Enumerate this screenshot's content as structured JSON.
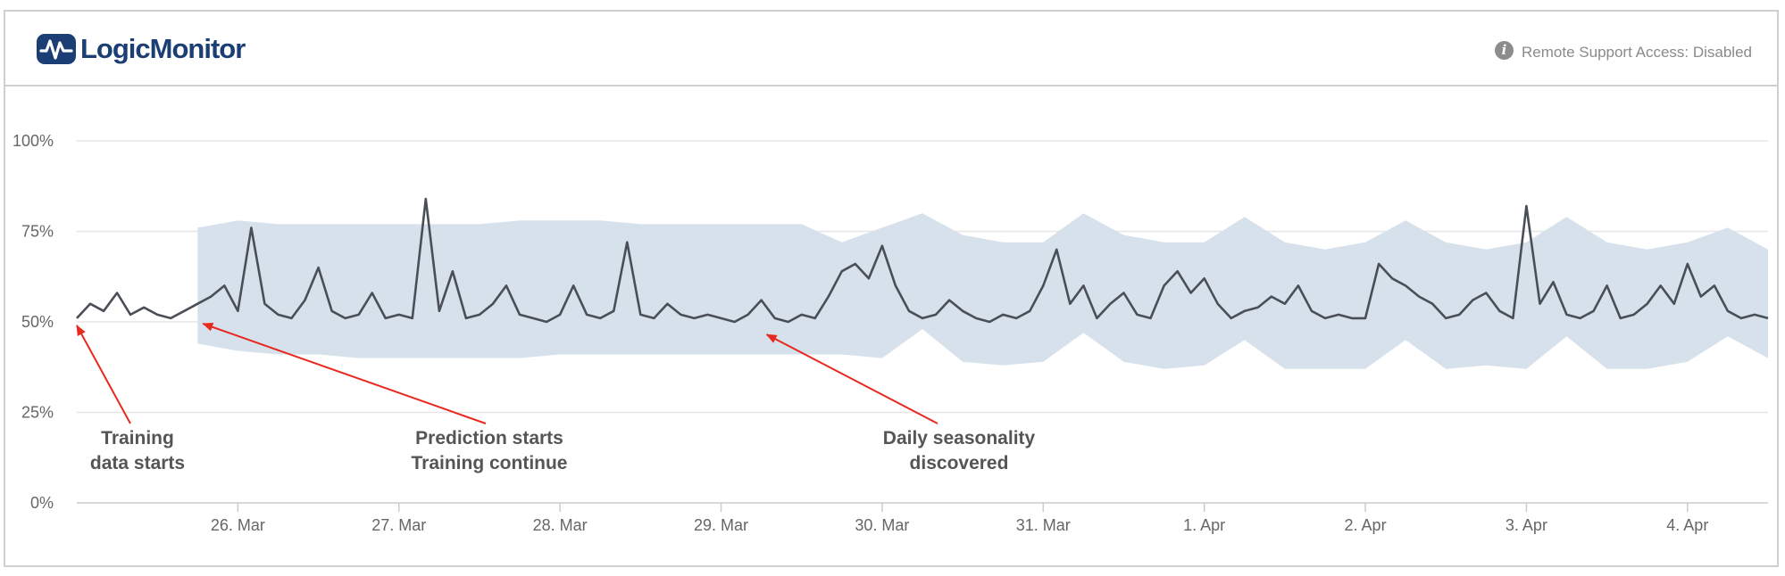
{
  "header": {
    "brand_logic": "Logic",
    "brand_monitor": "Monitor",
    "remote_support": "Remote Support Access: Disabled",
    "logo_icon": "pulse-logo-icon",
    "info_icon": "info-icon"
  },
  "colors": {
    "line": "#4a4f57",
    "band": "#d6e1ec",
    "grid": "#e6e6e6",
    "arrow": "#e8291f",
    "annotation_text": "#555555",
    "brand": "#1b3f74"
  },
  "chart_data": {
    "type": "line",
    "title": "",
    "xlabel": "",
    "ylabel": "",
    "ylim": [
      0,
      100
    ],
    "yticks": [
      0,
      25,
      50,
      75,
      100
    ],
    "ytick_labels": [
      "0%",
      "25%",
      "50%",
      "75%",
      "100%"
    ],
    "xlim": [
      "2024-03-25T00:00",
      "2024-04-04T12:00"
    ],
    "xticks": [
      "2024-03-26",
      "2024-03-27",
      "2024-03-28",
      "2024-03-29",
      "2024-03-30",
      "2024-03-31",
      "2024-04-01",
      "2024-04-02",
      "2024-04-03",
      "2024-04-04"
    ],
    "xtick_labels": [
      "26. Mar",
      "27. Mar",
      "28. Mar",
      "29. Mar",
      "30. Mar",
      "31. Mar",
      "1. Apr",
      "2. Apr",
      "3. Apr",
      "4. Apr"
    ],
    "grid": true,
    "legend": "none",
    "series": [
      {
        "x": [
          "2024-03-25T00:00",
          "2024-03-25T02:00",
          "2024-03-25T04:00",
          "2024-03-25T06:00",
          "2024-03-25T08:00",
          "2024-03-25T10:00",
          "2024-03-25T12:00",
          "2024-03-25T14:00",
          "2024-03-25T16:00",
          "2024-03-25T18:00",
          "2024-03-25T20:00",
          "2024-03-25T22:00",
          "2024-03-26T00:00",
          "2024-03-26T02:00",
          "2024-03-26T04:00",
          "2024-03-26T06:00",
          "2024-03-26T08:00",
          "2024-03-26T10:00",
          "2024-03-26T12:00",
          "2024-03-26T14:00",
          "2024-03-26T16:00",
          "2024-03-26T18:00",
          "2024-03-26T20:00",
          "2024-03-26T22:00",
          "2024-03-27T00:00",
          "2024-03-27T02:00",
          "2024-03-27T04:00",
          "2024-03-27T06:00",
          "2024-03-27T08:00",
          "2024-03-27T10:00",
          "2024-03-27T12:00",
          "2024-03-27T14:00",
          "2024-03-27T16:00",
          "2024-03-27T18:00",
          "2024-03-27T20:00",
          "2024-03-27T22:00",
          "2024-03-28T00:00",
          "2024-03-28T02:00",
          "2024-03-28T04:00",
          "2024-03-28T06:00",
          "2024-03-28T08:00",
          "2024-03-28T10:00",
          "2024-03-28T12:00",
          "2024-03-28T14:00",
          "2024-03-28T16:00",
          "2024-03-28T18:00",
          "2024-03-28T20:00",
          "2024-03-28T22:00",
          "2024-03-29T00:00",
          "2024-03-29T02:00",
          "2024-03-29T04:00",
          "2024-03-29T06:00",
          "2024-03-29T08:00",
          "2024-03-29T10:00",
          "2024-03-29T12:00",
          "2024-03-29T14:00",
          "2024-03-29T16:00",
          "2024-03-29T18:00",
          "2024-03-29T20:00",
          "2024-03-29T22:00",
          "2024-03-30T00:00",
          "2024-03-30T02:00",
          "2024-03-30T04:00",
          "2024-03-30T06:00",
          "2024-03-30T08:00",
          "2024-03-30T10:00",
          "2024-03-30T12:00",
          "2024-03-30T14:00",
          "2024-03-30T16:00",
          "2024-03-30T18:00",
          "2024-03-30T20:00",
          "2024-03-30T22:00",
          "2024-03-31T00:00",
          "2024-03-31T02:00",
          "2024-03-31T04:00",
          "2024-03-31T06:00",
          "2024-03-31T08:00",
          "2024-03-31T10:00",
          "2024-03-31T12:00",
          "2024-03-31T14:00",
          "2024-03-31T16:00",
          "2024-03-31T18:00",
          "2024-03-31T20:00",
          "2024-03-31T22:00",
          "2024-04-01T00:00",
          "2024-04-01T02:00",
          "2024-04-01T04:00",
          "2024-04-01T06:00",
          "2024-04-01T08:00",
          "2024-04-01T10:00",
          "2024-04-01T12:00",
          "2024-04-01T14:00",
          "2024-04-01T16:00",
          "2024-04-01T18:00",
          "2024-04-01T20:00",
          "2024-04-01T22:00",
          "2024-04-02T00:00",
          "2024-04-02T02:00",
          "2024-04-02T04:00",
          "2024-04-02T06:00",
          "2024-04-02T08:00",
          "2024-04-02T10:00",
          "2024-04-02T12:00",
          "2024-04-02T14:00",
          "2024-04-02T16:00",
          "2024-04-02T18:00",
          "2024-04-02T20:00",
          "2024-04-02T22:00",
          "2024-04-03T00:00",
          "2024-04-03T02:00",
          "2024-04-03T04:00",
          "2024-04-03T06:00",
          "2024-04-03T08:00",
          "2024-04-03T10:00",
          "2024-04-03T12:00",
          "2024-04-03T14:00",
          "2024-04-03T16:00",
          "2024-04-03T18:00",
          "2024-04-03T20:00",
          "2024-04-03T22:00",
          "2024-04-04T00:00",
          "2024-04-04T02:00",
          "2024-04-04T04:00",
          "2024-04-04T06:00",
          "2024-04-04T08:00",
          "2024-04-04T10:00",
          "2024-04-04T12:00"
        ],
        "y": [
          51,
          55,
          53,
          58,
          52,
          54,
          52,
          51,
          53,
          55,
          57,
          60,
          53,
          76,
          55,
          52,
          51,
          56,
          65,
          53,
          51,
          52,
          58,
          51,
          52,
          51,
          84,
          53,
          64,
          51,
          52,
          55,
          60,
          52,
          51,
          50,
          52,
          60,
          52,
          51,
          53,
          72,
          52,
          51,
          55,
          52,
          51,
          52,
          51,
          50,
          52,
          56,
          51,
          50,
          52,
          51,
          57,
          64,
          66,
          62,
          71,
          60,
          53,
          51,
          52,
          56,
          53,
          51,
          50,
          52,
          51,
          53,
          60,
          70,
          55,
          60,
          51,
          55,
          58,
          52,
          51,
          60,
          64,
          58,
          62,
          55,
          51,
          53,
          54,
          57,
          55,
          60,
          53,
          51,
          52,
          51,
          51,
          66,
          62,
          60,
          57,
          55,
          51,
          52,
          56,
          58,
          53,
          51,
          82,
          55,
          61,
          52,
          51,
          53,
          60,
          51,
          52,
          55,
          60,
          55,
          66,
          57,
          60,
          53,
          51,
          52,
          51
        ]
      }
    ],
    "prediction_band": {
      "x": [
        "2024-03-25T18:00",
        "2024-03-26T00:00",
        "2024-03-26T06:00",
        "2024-03-26T12:00",
        "2024-03-26T18:00",
        "2024-03-27T00:00",
        "2024-03-27T06:00",
        "2024-03-27T12:00",
        "2024-03-27T18:00",
        "2024-03-28T00:00",
        "2024-03-28T06:00",
        "2024-03-28T12:00",
        "2024-03-28T18:00",
        "2024-03-29T00:00",
        "2024-03-29T06:00",
        "2024-03-29T12:00",
        "2024-03-29T18:00",
        "2024-03-30T00:00",
        "2024-03-30T06:00",
        "2024-03-30T12:00",
        "2024-03-30T18:00",
        "2024-03-31T00:00",
        "2024-03-31T06:00",
        "2024-03-31T12:00",
        "2024-03-31T18:00",
        "2024-04-01T00:00",
        "2024-04-01T06:00",
        "2024-04-01T12:00",
        "2024-04-01T18:00",
        "2024-04-02T00:00",
        "2024-04-02T06:00",
        "2024-04-02T12:00",
        "2024-04-02T18:00",
        "2024-04-03T00:00",
        "2024-04-03T06:00",
        "2024-04-03T12:00",
        "2024-04-03T18:00",
        "2024-04-04T00:00",
        "2024-04-04T06:00",
        "2024-04-04T12:00"
      ],
      "upper": [
        76,
        78,
        77,
        77,
        77,
        77,
        77,
        77,
        78,
        78,
        78,
        77,
        77,
        77,
        77,
        77,
        72,
        76,
        80,
        74,
        72,
        72,
        80,
        74,
        72,
        72,
        79,
        72,
        70,
        72,
        78,
        72,
        70,
        72,
        79,
        72,
        70,
        72,
        76,
        70
      ],
      "lower": [
        44,
        42,
        41,
        41,
        40,
        40,
        40,
        40,
        40,
        41,
        41,
        41,
        41,
        41,
        41,
        41,
        41,
        40,
        48,
        39,
        38,
        39,
        47,
        39,
        37,
        38,
        45,
        37,
        37,
        37,
        45,
        37,
        38,
        37,
        46,
        37,
        37,
        39,
        46,
        40
      ]
    },
    "annotations": [
      {
        "lines": [
          "Training",
          "data starts"
        ],
        "points_to": {
          "x": "2024-03-25T00:00",
          "y": 50
        }
      },
      {
        "lines": [
          "Prediction starts",
          "Training continue"
        ],
        "points_to": {
          "x": "2024-03-25T18:00",
          "y": 50
        }
      },
      {
        "lines": [
          "Daily seasonality",
          "discovered"
        ],
        "points_to": {
          "x": "2024-03-29T06:00",
          "y": 47
        }
      }
    ]
  }
}
